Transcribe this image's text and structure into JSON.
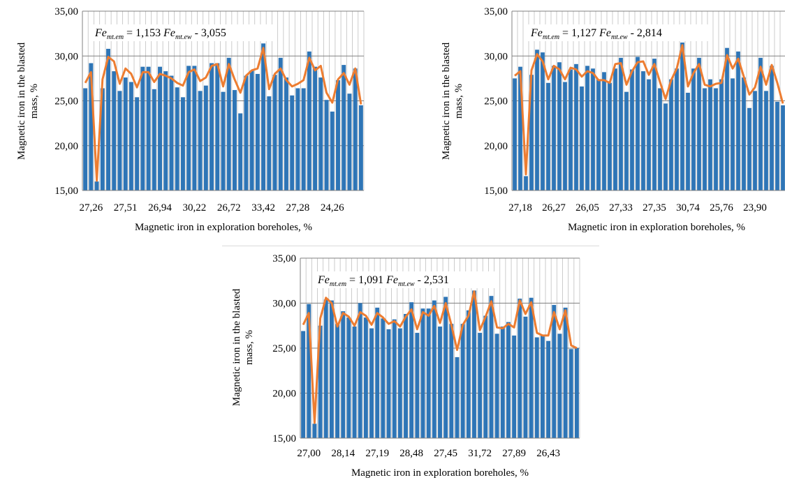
{
  "colors": {
    "bar": "#2e75b6",
    "line": "#ed7d31",
    "grid": "#bfbfbf",
    "axis": "#808080",
    "text": "#000000"
  },
  "chart_data": [
    {
      "type": "bar",
      "equation": {
        "lhs": "Fe",
        "lhs_sub": "mt.em",
        "coef": " = 1,153 ",
        "rhs": "Fe",
        "rhs_sub": "mt.ew",
        "const": " - 3,055"
      },
      "xlabel": "Magnetic iron in exploration boreholes, %",
      "ylabel": "Magnetic iron in the blasted mass, %",
      "ylim": [
        15,
        35
      ],
      "yticks": [
        "15,00",
        "20,00",
        "25,00",
        "30,00",
        "35,00"
      ],
      "grid": true,
      "x_tick_labels": [
        "27,26",
        "27,51",
        "26,94",
        "30,22",
        "26,72",
        "33,42",
        "27,28",
        "24,26"
      ],
      "series": [
        {
          "type": "bar",
          "values": [
            26.4,
            29.2,
            16.0,
            26.4,
            30.8,
            28.3,
            26.1,
            27.6,
            27.1,
            25.4,
            28.8,
            28.8,
            26.3,
            28.8,
            28.3,
            27.8,
            26.5,
            25.4,
            28.9,
            28.9,
            26.1,
            26.7,
            29.2,
            29.2,
            26.0,
            29.8,
            26.2,
            23.6,
            27.8,
            28.4,
            28.0,
            31.4,
            25.5,
            27.9,
            29.8,
            27.6,
            25.6,
            26.4,
            26.4,
            30.5,
            28.8,
            27.6,
            25.1,
            23.8,
            27.3,
            29.0,
            25.8,
            28.6,
            24.5
          ]
        },
        {
          "type": "line",
          "values": [
            27.0,
            28.2,
            16.1,
            27.4,
            29.9,
            29.4,
            26.9,
            28.6,
            28.0,
            26.5,
            28.2,
            28.2,
            27.1,
            28.0,
            27.8,
            27.5,
            27.0,
            26.7,
            28.2,
            28.5,
            27.2,
            27.6,
            28.9,
            29.1,
            26.6,
            29.1,
            27.4,
            25.9,
            27.8,
            28.4,
            28.6,
            30.9,
            26.3,
            28.0,
            28.6,
            27.3,
            26.6,
            26.9,
            27.3,
            29.8,
            28.4,
            28.9,
            25.9,
            24.8,
            27.4,
            28.1,
            26.8,
            28.6,
            24.6
          ]
        }
      ]
    },
    {
      "type": "bar",
      "equation": {
        "lhs": "Fe",
        "lhs_sub": "mt.em",
        "coef": " = 1,127 ",
        "rhs": "Fe",
        "rhs_sub": "mt.ew",
        "const": " - 2,814"
      },
      "xlabel": "Magnetic iron in exploration boreholes, %",
      "ylabel": "Magnetic iron in the blasted mass, %",
      "ylim": [
        15,
        35
      ],
      "yticks": [
        "15,00",
        "20,00",
        "25,00",
        "30,00",
        "35,00"
      ],
      "grid": true,
      "x_tick_labels": [
        "27,18",
        "26,27",
        "26,05",
        "27,33",
        "27,35",
        "30,74",
        "25,76",
        "23,90"
      ],
      "series": [
        {
          "type": "bar",
          "values": [
            27.5,
            28.8,
            16.6,
            27.9,
            30.7,
            30.4,
            27.0,
            28.9,
            29.3,
            27.1,
            28.5,
            29.1,
            26.6,
            28.9,
            28.6,
            27.4,
            28.2,
            27.0,
            28.6,
            29.8,
            26.0,
            28.5,
            29.9,
            28.3,
            27.4,
            29.7,
            26.4,
            24.7,
            27.4,
            28.6,
            31.5,
            25.9,
            28.6,
            29.8,
            26.4,
            27.4,
            26.4,
            27.4,
            30.9,
            27.5,
            30.5,
            27.6,
            24.2,
            26.1,
            29.8,
            26.1,
            28.9,
            24.9,
            24.5
          ]
        },
        {
          "type": "line",
          "values": [
            27.8,
            28.3,
            16.8,
            28.4,
            30.2,
            29.4,
            27.4,
            28.9,
            28.5,
            27.4,
            28.7,
            28.5,
            27.7,
            28.3,
            28.1,
            27.3,
            27.3,
            27.0,
            29.1,
            29.2,
            26.8,
            28.3,
            29.3,
            29.4,
            27.9,
            29.1,
            27.1,
            25.2,
            27.3,
            28.6,
            31.2,
            26.6,
            28.1,
            29.1,
            26.8,
            26.6,
            26.9,
            27.0,
            30.1,
            28.6,
            29.7,
            27.7,
            25.7,
            26.5,
            28.8,
            26.8,
            29.0,
            27.0,
            24.7
          ]
        }
      ]
    },
    {
      "type": "bar",
      "equation": {
        "lhs": "Fe",
        "lhs_sub": "mt.em",
        "coef": " = 1,091 ",
        "rhs": "Fe",
        "rhs_sub": "mt.ew",
        "const": " - 2,531"
      },
      "xlabel": "Magnetic iron in exploration boreholes, %",
      "ylabel": "Magnetic iron in the blasted mass, %",
      "ylim": [
        15,
        35
      ],
      "yticks": [
        "15,00",
        "20,00",
        "25,00",
        "30,00",
        "35,00"
      ],
      "grid": true,
      "x_tick_labels": [
        "27,00",
        "28,14",
        "27,19",
        "28,48",
        "27,45",
        "31,72",
        "27,89",
        "26,43"
      ],
      "series": [
        {
          "type": "bar",
          "values": [
            26.9,
            29.9,
            16.6,
            27.5,
            30.4,
            30.3,
            27.7,
            29.1,
            28.4,
            27.4,
            30.0,
            28.4,
            27.2,
            29.5,
            28.3,
            27.1,
            28.2,
            27.2,
            28.8,
            30.1,
            26.7,
            29.4,
            29.4,
            30.3,
            27.4,
            30.7,
            27.7,
            24.0,
            27.7,
            29.2,
            31.4,
            26.7,
            28.6,
            30.8,
            26.6,
            27.4,
            27.9,
            26.4,
            30.5,
            28.5,
            30.6,
            26.2,
            26.4,
            25.8,
            29.8,
            26.6,
            29.5,
            24.9,
            25.0
          ]
        },
        {
          "type": "line",
          "values": [
            27.6,
            28.9,
            16.7,
            28.3,
            30.6,
            30.0,
            27.4,
            28.9,
            28.5,
            27.5,
            29.0,
            28.6,
            27.6,
            28.9,
            28.4,
            27.7,
            28.0,
            27.4,
            28.5,
            29.3,
            27.1,
            29.0,
            28.6,
            29.7,
            27.8,
            30.0,
            27.6,
            24.8,
            27.6,
            28.6,
            31.3,
            27.0,
            28.5,
            30.2,
            27.3,
            27.2,
            27.7,
            27.3,
            30.3,
            28.8,
            30.1,
            26.7,
            26.4,
            26.4,
            29.0,
            27.1,
            29.2,
            25.3,
            25.0
          ]
        }
      ]
    }
  ]
}
